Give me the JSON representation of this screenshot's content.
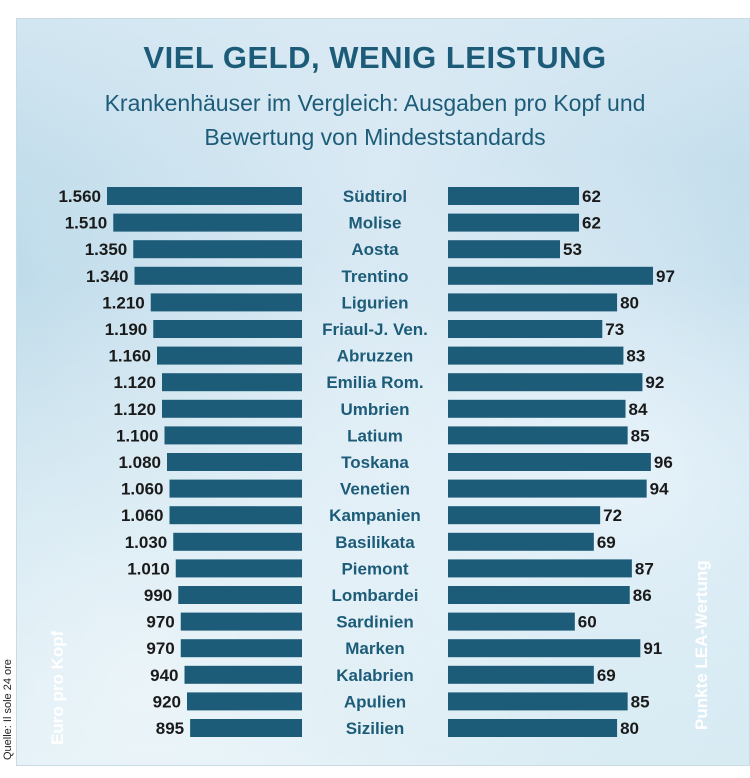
{
  "colors": {
    "bar": "#1d5c78",
    "text": "#1d5c78",
    "value_text": "#1a1a1a",
    "axis_label": "#ffffff"
  },
  "chart_data": {
    "type": "bar",
    "title": "VIEL GELD, WENIG LEISTUNG",
    "subtitle_line1": "Krankenhäuser im Vergleich: Ausgaben pro Kopf und",
    "subtitle_line2": "Bewertung von Mindeststandards",
    "source": "Quelle: Il sole 24 ore",
    "categories": [
      "Südtirol",
      "Molise",
      "Aosta",
      "Trentino",
      "Ligurien",
      "Friaul-J. Ven.",
      "Abruzzen",
      "Emilia Rom.",
      "Umbrien",
      "Latium",
      "Toskana",
      "Venetien",
      "Kampanien",
      "Basilikata",
      "Piemont",
      "Lombardei",
      "Sardinien",
      "Marken",
      "Kalabrien",
      "Apulien",
      "Sizilien"
    ],
    "series": [
      {
        "name": "Euro pro Kopf",
        "values": [
          1560,
          1510,
          1350,
          1340,
          1210,
          1190,
          1160,
          1120,
          1120,
          1100,
          1080,
          1060,
          1060,
          1030,
          1010,
          990,
          970,
          970,
          940,
          920,
          895
        ],
        "labels": [
          "1.560",
          "1.510",
          "1.350",
          "1.340",
          "1.210",
          "1.190",
          "1.160",
          "1.120",
          "1.120",
          "1.100",
          "1.080",
          "1.060",
          "1.060",
          "1.030",
          "1.010",
          "990",
          "970",
          "970",
          "940",
          "920",
          "895"
        ]
      },
      {
        "name": "Punkte LEA-Wertung",
        "values": [
          62,
          62,
          53,
          97,
          80,
          73,
          83,
          92,
          84,
          85,
          96,
          94,
          72,
          69,
          87,
          86,
          60,
          91,
          69,
          85,
          80
        ],
        "labels": [
          "62",
          "62",
          "53",
          "97",
          "80",
          "73",
          "83",
          "92",
          "84",
          "85",
          "96",
          "94",
          "72",
          "69",
          "87",
          "86",
          "60",
          "91",
          "69",
          "85",
          "80"
        ]
      }
    ]
  }
}
